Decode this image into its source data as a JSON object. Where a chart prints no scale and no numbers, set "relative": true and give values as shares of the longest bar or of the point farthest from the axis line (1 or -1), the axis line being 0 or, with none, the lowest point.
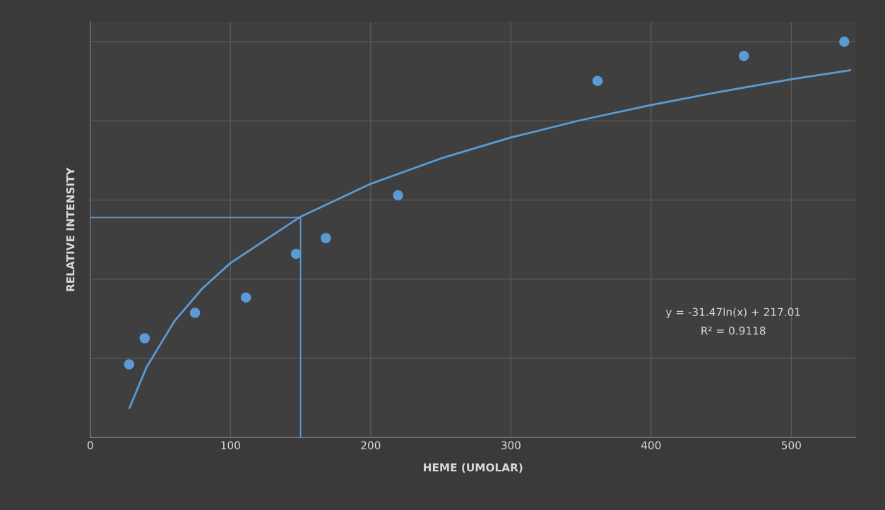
{
  "chart_data": {
    "type": "scatter",
    "relative": true,
    "xlabel": "HEME (UMOLAR)",
    "ylabel": "RELATIVE INTENSITY",
    "xlim": [
      0,
      546
    ],
    "xticks": [
      0,
      100,
      200,
      300,
      400,
      500
    ],
    "grid": true,
    "series": [
      {
        "marker": "circle",
        "color": "#5b9bd5",
        "x": [
          27.7,
          38.8,
          74.7,
          111,
          146.8,
          168,
          219.5,
          361.8,
          466.2,
          537.8
        ],
        "values": [
          0.185,
          0.251,
          0.315,
          0.354,
          0.464,
          0.504,
          0.612,
          0.901,
          0.964,
          1
        ]
      },
      {
        "type": "line",
        "color": "#5b9bd5",
        "x": [
          28,
          40,
          60,
          80,
          100,
          150,
          200,
          250,
          300,
          350,
          400,
          450,
          500,
          542
        ],
        "values": [
          0.075,
          0.177,
          0.294,
          0.377,
          0.441,
          0.558,
          0.641,
          0.705,
          0.758,
          0.802,
          0.84,
          0.874,
          0.905,
          0.928
        ]
      },
      {
        "type": "line",
        "color": "#5b9bd5",
        "x": [
          0,
          150,
          150
        ],
        "values": [
          0.556,
          0.556,
          0
        ]
      }
    ],
    "annotations": [
      "y = -31.47ln(x) + 217.01",
      "R² = 0.9118"
    ]
  }
}
